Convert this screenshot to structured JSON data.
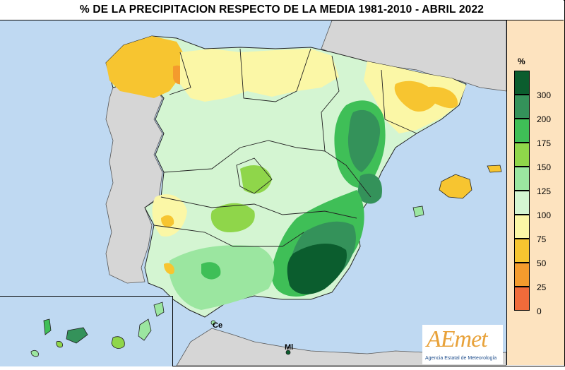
{
  "title": "% DE LA PRECIPITACION RESPECTO DE LA MEDIA 1981-2010 - ABRIL 2022",
  "legend": {
    "unit": "%",
    "entries": [
      {
        "label": "300",
        "color": "#0b5d2e"
      },
      {
        "label": "200",
        "color": "#34925a"
      },
      {
        "label": "175",
        "color": "#3fbf57"
      },
      {
        "label": "150",
        "color": "#8fd64a"
      },
      {
        "label": "125",
        "color": "#9be6a0"
      },
      {
        "label": "100",
        "color": "#d4f5d2"
      },
      {
        "label": "75",
        "color": "#fbf7a6"
      },
      {
        "label": "50",
        "color": "#f7c530"
      },
      {
        "label": "25",
        "color": "#f49b2d"
      },
      {
        "label": "0",
        "color": "#f06b3a"
      }
    ]
  },
  "places": {
    "ceuta": "Ce",
    "melilla": "Ml"
  },
  "logo": {
    "wordmark": "AEmet",
    "agency": "Agencia Estatal de Meteorología"
  },
  "colors": {
    "sea": "#bfd9f2",
    "foreign_land": "#d6d6d6",
    "legend_bg": "#fde3bf"
  }
}
